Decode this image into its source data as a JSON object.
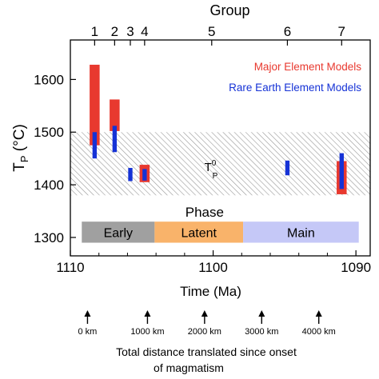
{
  "chart_data": {
    "type": "bar",
    "top_axis_title": "Group",
    "groups": [
      {
        "label": "1",
        "time": 1108.3
      },
      {
        "label": "2",
        "time": 1106.9
      },
      {
        "label": "3",
        "time": 1105.8
      },
      {
        "label": "4",
        "time": 1104.8
      },
      {
        "label": "5",
        "time": 1100.1
      },
      {
        "label": "6",
        "time": 1094.8
      },
      {
        "label": "7",
        "time": 1091.0
      }
    ],
    "xlabel": "Time (Ma)",
    "x_reversed": true,
    "xlim": [
      1110,
      1089
    ],
    "xticks": [
      1110,
      1100,
      1090
    ],
    "ylabel_main": "T",
    "ylabel_sub": "P",
    "ylabel_unit": " (°C)",
    "ylim": [
      1265,
      1675
    ],
    "yticks": [
      1300,
      1400,
      1500,
      1600
    ],
    "band": {
      "range": [
        1380,
        1500
      ],
      "label_main": "T",
      "label_sub": "P",
      "label_sup": "0",
      "label_x": 1100,
      "label_y": 1420
    },
    "legend": {
      "position": "top-right",
      "items": [
        {
          "label": "Major Element Models",
          "color": "#e8392f"
        },
        {
          "label": "Rare Earth Element Models",
          "color": "#1532d6"
        }
      ]
    },
    "series": [
      {
        "name": "Major Element Models",
        "color": "#e8392f",
        "width": 0.7,
        "ranges": [
          {
            "x": 1108.3,
            "ymin": 1475,
            "ymax": 1628
          },
          {
            "x": 1106.9,
            "ymin": 1502,
            "ymax": 1562
          },
          {
            "x": 1104.8,
            "ymin": 1405,
            "ymax": 1438
          },
          {
            "x": 1091.0,
            "ymin": 1382,
            "ymax": 1445
          }
        ]
      },
      {
        "name": "Rare Earth Element Models",
        "color": "#1532d6",
        "width": 0.3,
        "ranges": [
          {
            "x": 1108.3,
            "ymin": 1450,
            "ymax": 1500
          },
          {
            "x": 1106.9,
            "ymin": 1462,
            "ymax": 1512
          },
          {
            "x": 1105.8,
            "ymin": 1407,
            "ymax": 1432
          },
          {
            "x": 1104.8,
            "ymin": 1408,
            "ymax": 1430
          },
          {
            "x": 1094.8,
            "ymin": 1418,
            "ymax": 1446
          },
          {
            "x": 1091.0,
            "ymin": 1392,
            "ymax": 1460
          }
        ]
      }
    ],
    "phase": {
      "title": "Phase",
      "y_range": [
        1290,
        1330
      ],
      "segments": [
        {
          "label": "Early",
          "from": 1109.2,
          "to": 1104.1,
          "color": "#a0a0a0"
        },
        {
          "label": "Latent",
          "from": 1104.1,
          "to": 1097.9,
          "color": "#f9b36a"
        },
        {
          "label": "Main",
          "from": 1097.9,
          "to": 1089.8,
          "color": "#c5c8f7"
        }
      ]
    },
    "distance": {
      "markers": [
        {
          "label": "0 km",
          "time": 1108.8
        },
        {
          "label": "1000 km",
          "time": 1104.6
        },
        {
          "label": "2000 km",
          "time": 1100.6
        },
        {
          "label": "3000 km",
          "time": 1096.6
        },
        {
          "label": "4000 km",
          "time": 1092.6
        }
      ],
      "caption_line1": "Total distance translated since onset",
      "caption_line2": "of magmatism"
    }
  }
}
